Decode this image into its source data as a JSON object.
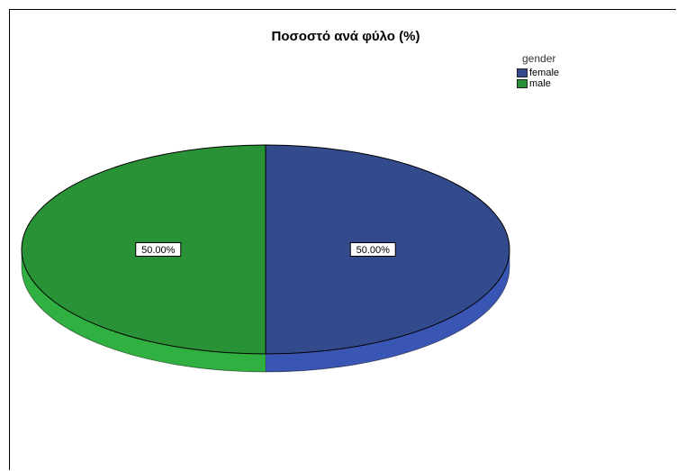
{
  "chart_data": {
    "type": "pie",
    "title": "Ποσοστό ανά φύλο (%)",
    "legend_title": "gender",
    "legend_position": "top-right",
    "slices": [
      {
        "name": "female",
        "value": 50.0,
        "label": "50.00%",
        "color": "#334a8c",
        "side_color": "#3a56b5"
      },
      {
        "name": "male",
        "value": 50.0,
        "label": "50.00%",
        "color": "#2a9236",
        "side_color": "#2fb040"
      }
    ]
  }
}
